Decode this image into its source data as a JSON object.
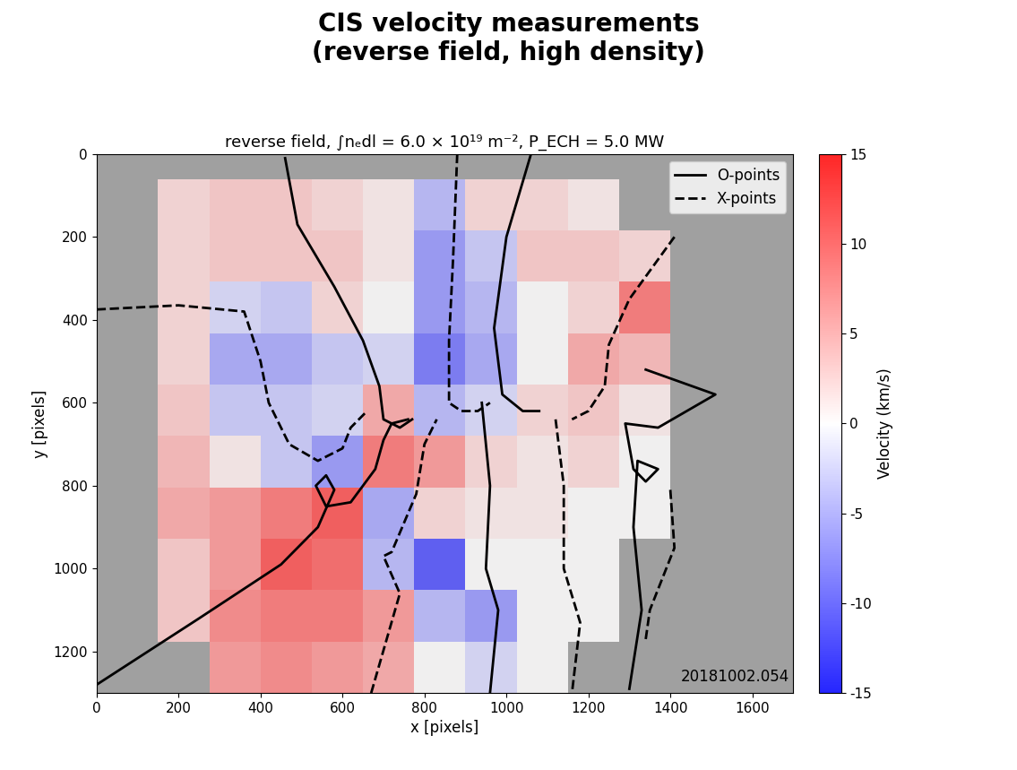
{
  "chart_data": {
    "type": "heatmap",
    "title": "CIS velocity measurements\n(reverse field, high density)",
    "subtitle": "reverse field, ∫nₑdl = 6.0 × 10¹⁹ m⁻², P_ECH = 5.0 MW",
    "x_label": "x [pixels]",
    "y_label": "y [pixels]",
    "xlim": [
      0,
      1700
    ],
    "ylim": [
      1300,
      0
    ],
    "xticks": [
      0,
      200,
      400,
      600,
      800,
      1000,
      1200,
      1400,
      1600
    ],
    "yticks": [
      0,
      200,
      400,
      600,
      800,
      1000,
      1200
    ],
    "grid": false,
    "legend": "upper right",
    "annotation": "20181002.054",
    "x_edges": [
      150,
      275,
      400,
      525,
      650,
      775,
      900,
      1025,
      1150,
      1275,
      1400
    ],
    "y_edges": [
      60,
      184,
      308,
      432,
      556,
      680,
      804,
      928,
      1052,
      1176,
      1300
    ],
    "cells": [
      [
        2,
        3,
        3,
        2,
        1,
        -4,
        2,
        2,
        1,
        null
      ],
      [
        2,
        3,
        3,
        3,
        1,
        -6,
        -3,
        3,
        3,
        2
      ],
      [
        2,
        -2,
        -3,
        2,
        0,
        -6,
        -4,
        0,
        2,
        8
      ],
      [
        2,
        -5,
        -5,
        -3,
        -2,
        -8,
        -5,
        0,
        5,
        4
      ],
      [
        3,
        -3,
        -3,
        -2,
        5,
        -4,
        -2,
        2,
        3,
        1
      ],
      [
        4,
        1,
        -3,
        -6,
        8,
        6,
        2,
        1,
        2,
        0
      ],
      [
        5,
        6,
        8,
        10,
        -5,
        2,
        1,
        1,
        0,
        0
      ],
      [
        3,
        6,
        10,
        9,
        -4,
        -10,
        0,
        0,
        0,
        null
      ],
      [
        3,
        7,
        8,
        8,
        6,
        -4,
        -6,
        0,
        0,
        null
      ],
      [
        null,
        6,
        7,
        6,
        5,
        0,
        -2,
        0,
        null,
        null
      ]
    ],
    "colorbar_label": "Velocity (km/s)",
    "colorbar_range": [
      -15,
      15
    ],
    "colorbar_ticks": [
      -15,
      -10,
      -5,
      0,
      5,
      10,
      15
    ],
    "series": [
      {
        "name": "O-points",
        "color": "black",
        "line_style": "solid",
        "segments": [
          {
            "x": [
              0,
              250,
              450,
              540,
              580,
              560,
              535,
              560,
              620,
              680,
              700,
              720,
              760
            ],
            "y": [
              1280,
              1120,
              990,
              900,
              810,
              775,
              800,
              850,
              840,
              760,
              690,
              650,
              640
            ]
          },
          {
            "x": [
              460,
              490,
              580,
              650,
              690,
              700,
              740,
              770
            ],
            "y": [
              10,
              170,
              320,
              450,
              560,
              640,
              660,
              640
            ]
          },
          {
            "x": [
              1060,
              1000,
              970,
              990,
              1040,
              1080
            ],
            "y": [
              0,
              200,
              420,
              580,
              620,
              620
            ]
          },
          {
            "x": [
              940,
              960,
              950,
              980,
              960
            ],
            "y": [
              600,
              800,
              1000,
              1100,
              1300
            ]
          },
          {
            "x": [
              1340,
              1510,
              1370,
              1290,
              1310,
              1340,
              1370,
              1320,
              1310,
              1330,
              1300
            ],
            "y": [
              520,
              580,
              660,
              650,
              760,
              790,
              760,
              740,
              900,
              1100,
              1290
            ]
          }
        ]
      },
      {
        "name": "X-points",
        "color": "black",
        "line_style": "dashed",
        "segments": [
          {
            "x": [
              0,
              200,
              360,
              400,
              420,
              470,
              540,
              600,
              620,
              660
            ],
            "y": [
              375,
              365,
              380,
              500,
              600,
              700,
              740,
              710,
              660,
              620
            ]
          },
          {
            "x": [
              670,
              740,
              700,
              720,
              780,
              800,
              830
            ],
            "y": [
              1300,
              1060,
              970,
              960,
              820,
              700,
              640
            ]
          },
          {
            "x": [
              880,
              870,
              860,
              860,
              890,
              930,
              960
            ],
            "y": [
              0,
              250,
              450,
              600,
              620,
              620,
              600
            ]
          },
          {
            "x": [
              1410,
              1300,
              1250,
              1240,
              1200,
              1160
            ],
            "y": [
              200,
              350,
              460,
              560,
              620,
              640
            ]
          },
          {
            "x": [
              1120,
              1140,
              1140,
              1180,
              1160
            ],
            "y": [
              640,
              800,
              1000,
              1130,
              1300
            ]
          },
          {
            "x": [
              1400,
              1410,
              1350,
              1340
            ],
            "y": [
              810,
              950,
              1100,
              1170
            ]
          }
        ]
      }
    ]
  }
}
